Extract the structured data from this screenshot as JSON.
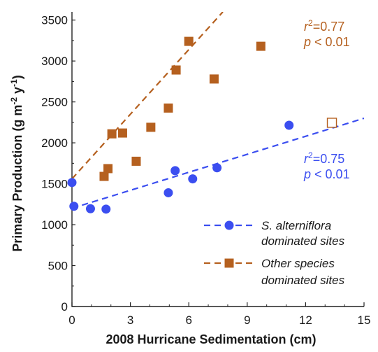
{
  "chart_data": {
    "type": "scatter",
    "title": "",
    "xlabel": "2008 Hurricane Sedimentation (cm)",
    "ylabel": "Primary Production (g m-2 y-1)",
    "xlim": [
      0,
      15
    ],
    "ylim": [
      0,
      3600
    ],
    "xticks": [
      0,
      3,
      6,
      9,
      12,
      15
    ],
    "yticks": [
      0,
      500,
      1000,
      1500,
      2000,
      2500,
      3000,
      3500
    ],
    "grid": false,
    "legend_position": "bottom-right",
    "series": [
      {
        "name": "S. alterniflora dominated sites",
        "legend_line1": "S. alterniflora",
        "legend_line2": "dominated sites",
        "marker": "circle",
        "color": "#3b4ef0",
        "points": [
          {
            "x": 0.0,
            "y": 1515
          },
          {
            "x": 0.1,
            "y": 1225
          },
          {
            "x": 0.95,
            "y": 1195
          },
          {
            "x": 1.75,
            "y": 1190
          },
          {
            "x": 4.95,
            "y": 1390
          },
          {
            "x": 5.3,
            "y": 1660
          },
          {
            "x": 6.2,
            "y": 1560
          },
          {
            "x": 7.45,
            "y": 1695
          },
          {
            "x": 11.15,
            "y": 2215
          }
        ],
        "open_points": [
          {
            "x": 13.35,
            "y": 2245
          }
        ],
        "trend": {
          "x0": 0,
          "y0": 1200,
          "x1": 15,
          "y1": 2300
        },
        "r2_label": "r",
        "r2_sup": "2",
        "r2_value": "=0.75",
        "p_label": "p",
        "p_value": " < 0.01"
      },
      {
        "name": "Other species dominated sites",
        "legend_line1": "Other species",
        "legend_line2": "dominated sites",
        "marker": "square",
        "color": "#b5601f",
        "points": [
          {
            "x": 1.65,
            "y": 1590
          },
          {
            "x": 1.85,
            "y": 1685
          },
          {
            "x": 2.05,
            "y": 2110
          },
          {
            "x": 2.6,
            "y": 2120
          },
          {
            "x": 3.3,
            "y": 1775
          },
          {
            "x": 4.05,
            "y": 2190
          },
          {
            "x": 4.95,
            "y": 2425
          },
          {
            "x": 5.35,
            "y": 2890
          },
          {
            "x": 6.0,
            "y": 3240
          },
          {
            "x": 7.3,
            "y": 2780
          },
          {
            "x": 9.7,
            "y": 3180
          }
        ],
        "trend": {
          "x0": 0,
          "y0": 1560,
          "x1": 7.75,
          "y1": 3600
        },
        "r2_label": "r",
        "r2_sup": "2",
        "r2_value": "=0.77",
        "p_label": "p",
        "p_value": " < 0.01"
      }
    ]
  }
}
